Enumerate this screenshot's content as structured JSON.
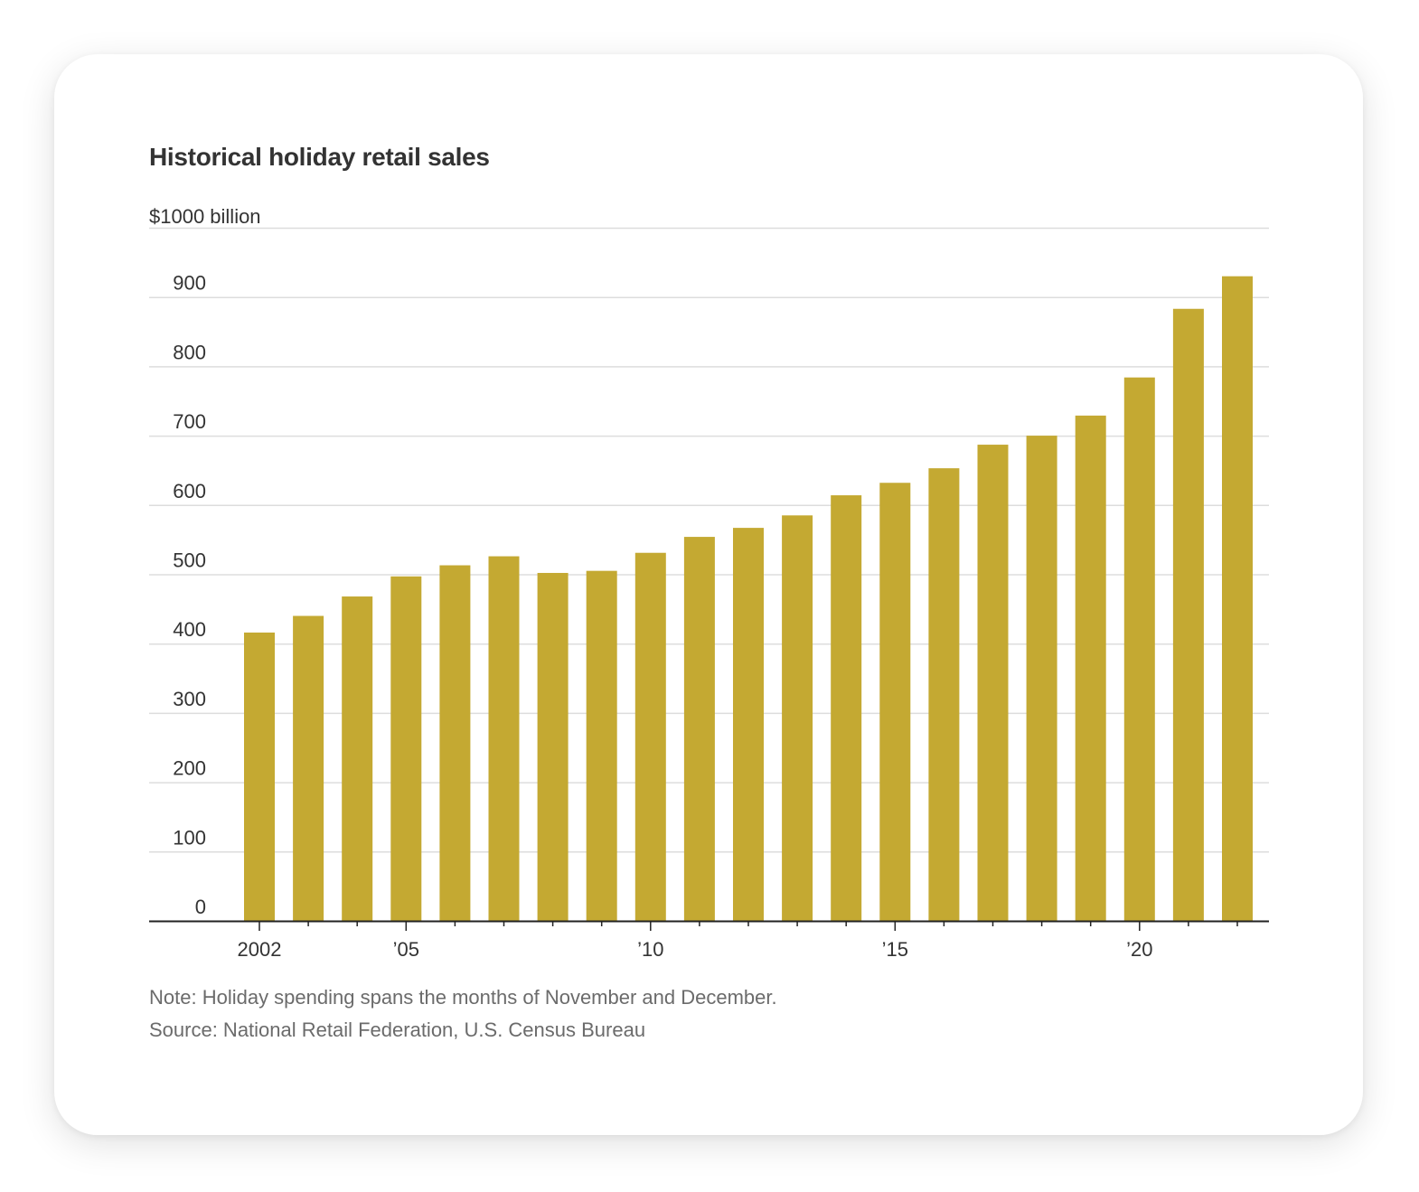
{
  "chart_data": {
    "type": "bar",
    "title": "Historical holiday retail sales",
    "unit_label": "$1000 billion",
    "ylabel": "",
    "xlabel": "",
    "ylim": [
      0,
      1000
    ],
    "yticks": [
      0,
      100,
      200,
      300,
      400,
      500,
      600,
      700,
      800,
      900
    ],
    "categories": [
      2002,
      2003,
      2004,
      2005,
      2006,
      2007,
      2008,
      2009,
      2010,
      2011,
      2012,
      2013,
      2014,
      2015,
      2016,
      2017,
      2018,
      2019,
      2020,
      2021,
      2022
    ],
    "values": [
      416,
      440,
      468,
      497,
      513,
      526,
      502,
      505,
      531,
      554,
      567,
      585,
      614,
      632,
      653,
      687,
      700,
      729,
      784,
      883,
      930
    ],
    "xtick_labels": [
      {
        "year": 2002,
        "label": "2002"
      },
      {
        "year": 2005,
        "label": "’05"
      },
      {
        "year": 2010,
        "label": "’10"
      },
      {
        "year": 2015,
        "label": "’15"
      },
      {
        "year": 2020,
        "label": "’20"
      }
    ],
    "bar_color": "#c4a932",
    "grid": true
  },
  "notes": {
    "note": "Note: Holiday spending spans the months of November and December.",
    "source": "Source: National Retail Federation, U.S. Census Bureau"
  }
}
